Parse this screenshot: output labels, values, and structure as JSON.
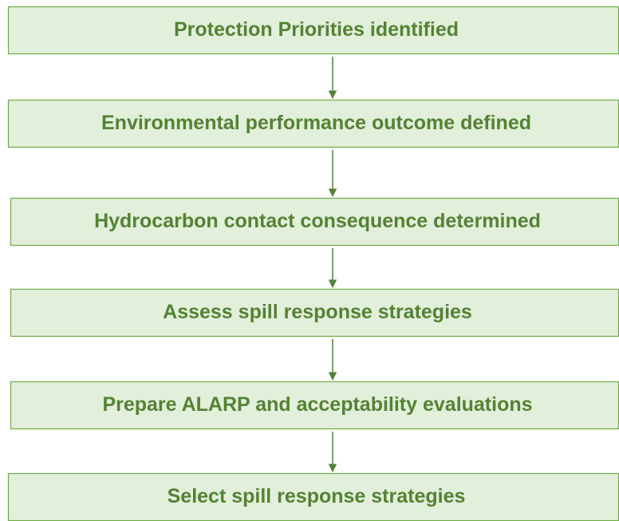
{
  "nodes": [
    {
      "label": "Protection Priorities identified"
    },
    {
      "label": "Environmental performance outcome defined"
    },
    {
      "label": "Hydrocarbon contact consequence determined"
    },
    {
      "label": "Assess spill response strategies"
    },
    {
      "label": "Prepare ALARP and acceptability evaluations"
    },
    {
      "label": "Select spill response strategies"
    }
  ]
}
